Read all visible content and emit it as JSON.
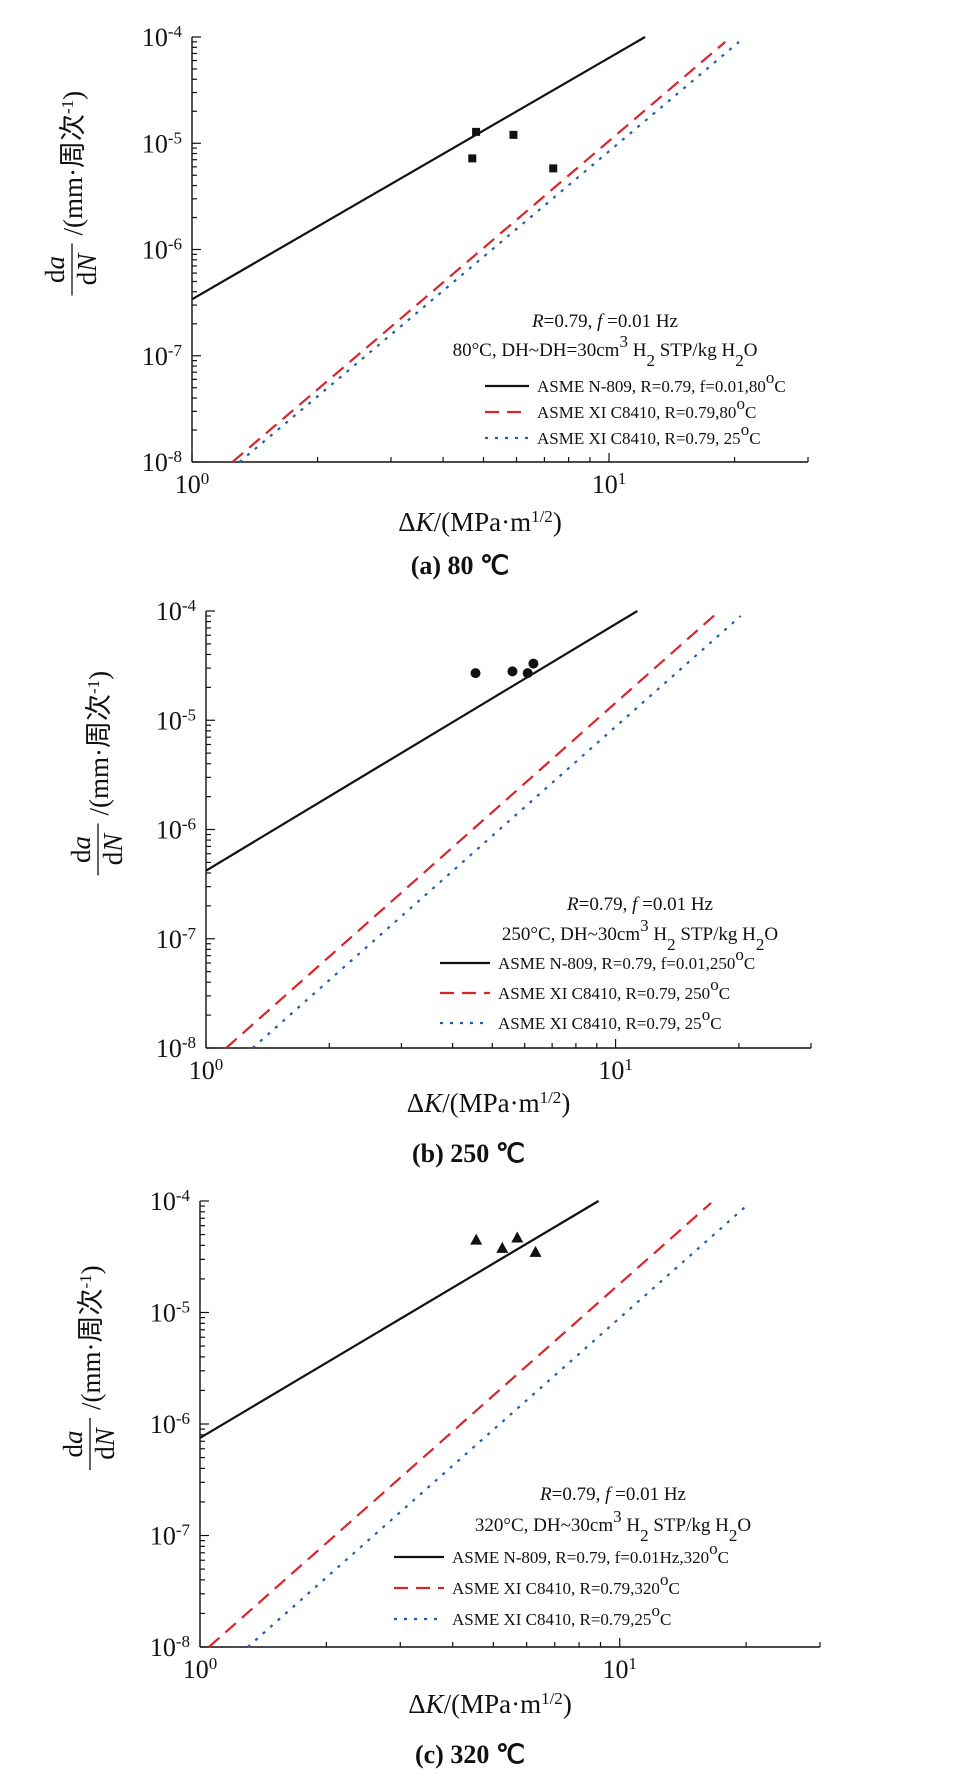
{
  "colors": {
    "n809": "#111111",
    "c8410_hot": "#d8252c",
    "c8410_25": "#1f5fa8"
  },
  "chart_data": [
    {
      "type": "line",
      "caption": "(a) 80 ℃",
      "xlabel": "ΔK/(MPa·m^1/2)",
      "ylabel": "da/dN /(mm·周次^-1)",
      "xscale": "log",
      "yscale": "log",
      "xlim": [
        1,
        30
      ],
      "ylim": [
        1e-08,
        0.0001
      ],
      "xticks": [
        "10^0",
        "10^1"
      ],
      "yticks": [
        "10^-8",
        "10^-7",
        "10^-6",
        "10^-5",
        "10^-4"
      ],
      "annotation": [
        "R=0.79, f =0.01 Hz",
        "80°C, DH~DH=30cm³ H₂ STP/kg H₂O"
      ],
      "legend_position": "bottom-right",
      "series": [
        {
          "name": "ASME N-809, R=0.79, f=0.01,80°C",
          "style": "solid",
          "color": "#111111",
          "x": [
            1,
            12.2
          ],
          "y": [
            3.4e-07,
            0.0001
          ]
        },
        {
          "name": "ASME XI C8410, R=0.79,80°C",
          "style": "dashed",
          "color": "#d8252c",
          "x": [
            1.25,
            19
          ],
          "y": [
            1e-08,
            9e-05
          ]
        },
        {
          "name": "ASME XI C8410, R=0.79, 25°C",
          "style": "dotted",
          "color": "#1f5fa8",
          "x": [
            1.3,
            20.5
          ],
          "y": [
            1e-08,
            9e-05
          ]
        }
      ],
      "points": {
        "marker": "square",
        "x": [
          4.7,
          4.8,
          5.9,
          7.35
        ],
        "y": [
          7.2e-06,
          1.28e-05,
          1.2e-05,
          5.8e-06
        ]
      }
    },
    {
      "type": "line",
      "caption": "(b) 250 ℃",
      "xlabel": "ΔK/(MPa·m^1/2)",
      "ylabel": "da/dN /(mm·周次^-1)",
      "xscale": "log",
      "yscale": "log",
      "xlim": [
        1,
        30
      ],
      "ylim": [
        1e-08,
        0.0001
      ],
      "xticks": [
        "10^0",
        "10^1"
      ],
      "yticks": [
        "10^-8",
        "10^-7",
        "10^-6",
        "10^-5",
        "10^-4"
      ],
      "annotation": [
        "R=0.79, f =0.01 Hz",
        "250°C, DH~30cm³ H₂ STP/kg H₂O"
      ],
      "legend_position": "bottom-right",
      "series": [
        {
          "name": "ASME N-809, R=0.79, f=0.01,250°C",
          "style": "solid",
          "color": "#111111",
          "x": [
            1,
            11.3
          ],
          "y": [
            4.2e-07,
            0.0001
          ]
        },
        {
          "name": "ASME XI C8410, R=0.79, 250°C",
          "style": "dashed",
          "color": "#d8252c",
          "x": [
            1.12,
            17.8
          ],
          "y": [
            1e-08,
            9.8e-05
          ]
        },
        {
          "name": "ASME XI C8410, R=0.79, 25°C",
          "style": "dotted",
          "color": "#1f5fa8",
          "x": [
            1.3,
            20.2
          ],
          "y": [
            1e-08,
            9e-05
          ]
        }
      ],
      "points": {
        "marker": "circle",
        "x": [
          4.55,
          5.6,
          6.1,
          6.3
        ],
        "y": [
          2.7e-05,
          2.8e-05,
          2.7e-05,
          3.3e-05
        ]
      }
    },
    {
      "type": "line",
      "caption": "(c) 320 ℃",
      "xlabel": "ΔK/(MPa·m^1/2)",
      "ylabel": "da/dN /(mm·周次^-1)",
      "xscale": "log",
      "yscale": "log",
      "xlim": [
        1,
        30
      ],
      "ylim": [
        1e-08,
        0.0001
      ],
      "xticks": [
        "10^0",
        "10^1"
      ],
      "yticks": [
        "10^-8",
        "10^-7",
        "10^-6",
        "10^-5",
        "10^-4"
      ],
      "annotation": [
        "R=0.79, f =0.01 Hz",
        "320°C, DH~30cm³ H₂ STP/kg H₂O"
      ],
      "legend_position": "bottom-right",
      "series": [
        {
          "name": "ASME N-809, R=0.79, f=0.01Hz,320°C",
          "style": "solid",
          "color": "#111111",
          "x": [
            1,
            8.9
          ],
          "y": [
            7.5e-07,
            0.0001
          ]
        },
        {
          "name": "ASME XI C8410, R=0.79,320°C",
          "style": "dashed",
          "color": "#d8252c",
          "x": [
            1.05,
            16.5
          ],
          "y": [
            1e-08,
            9.6e-05
          ]
        },
        {
          "name": "ASME XI C8410, R=0.79,25°C",
          "style": "dotted",
          "color": "#1f5fa8",
          "x": [
            1.3,
            20
          ],
          "y": [
            1e-08,
            9e-05
          ]
        }
      ],
      "points": {
        "marker": "triangle",
        "x": [
          4.55,
          5.25,
          5.7,
          6.3
        ],
        "y": [
          4.5e-05,
          3.8e-05,
          4.7e-05,
          3.5e-05
        ]
      }
    }
  ]
}
